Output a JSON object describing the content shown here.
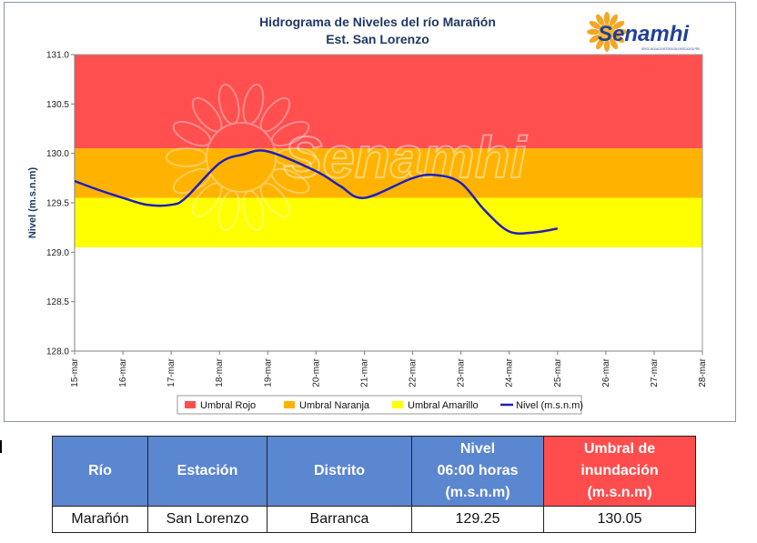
{
  "chart_data": {
    "type": "line",
    "title": "Hidrograma de Niveles del río Marañón",
    "subtitle": "Est. San Lorenzo",
    "ylabel": "Nivel (m.s.n.m)",
    "xlabel": "",
    "ylim": [
      128.0,
      131.0
    ],
    "yticks": [
      "128.0",
      "128.5",
      "129.0",
      "129.5",
      "130.0",
      "130.5",
      "131.0"
    ],
    "x_categories": [
      "15-mar",
      "16-mar",
      "17-mar",
      "18-mar",
      "19-mar",
      "20-mar",
      "21-mar",
      "22-mar",
      "23-mar",
      "24-mar",
      "25-mar",
      "26-mar",
      "27-mar",
      "28-mar"
    ],
    "grid": false,
    "legend_position": "bottom",
    "bands": [
      {
        "name": "Umbral Rojo",
        "from": 130.05,
        "to": 131.0,
        "color": "#ff4f4f"
      },
      {
        "name": "Umbral Naranja",
        "from": 129.55,
        "to": 130.05,
        "color": "#ffb300"
      },
      {
        "name": "Umbral Amarillo",
        "from": 129.05,
        "to": 129.55,
        "color": "#ffff00"
      }
    ],
    "series": [
      {
        "name": "Nivel (m.s.n.m)",
        "color": "#1f1fbf",
        "x": [
          0,
          0.5,
          1,
          1.5,
          2,
          2.3,
          3,
          3.5,
          4,
          5,
          5.5,
          6,
          7,
          7.5,
          8,
          8.5,
          9,
          9.5,
          10
        ],
        "y": [
          129.72,
          129.63,
          129.55,
          129.48,
          129.48,
          129.55,
          129.9,
          129.99,
          130.02,
          129.82,
          129.67,
          129.55,
          129.75,
          129.78,
          129.7,
          129.42,
          129.21,
          129.2,
          129.24
        ]
      }
    ]
  },
  "watermark": {
    "text": "Senamhi",
    "icon": "sun-icon"
  },
  "logo": {
    "text": "Senamhi",
    "tagline": "SERVICIO NACIONAL DE METEOROLOGÍA E HIDROLOGÍA DEL PERÚ",
    "icon": "sun-icon"
  },
  "table": {
    "headers": {
      "rio": "Río",
      "estacion": "Estación",
      "distrito": "Distrito",
      "nivel_1": "Nivel",
      "nivel_2": "06:00 horas",
      "nivel_3": "(m.s.n.m)",
      "umbral_1": "Umbral de",
      "umbral_2": "inundación",
      "umbral_3": "(m.s.n.m)"
    },
    "row": {
      "rio": "Marañón",
      "estacion": "San Lorenzo",
      "distrito": "Barranca",
      "nivel": "129.25",
      "umbral": "130.05"
    },
    "colors": {
      "header_blue": "#5b86d0",
      "header_red": "#ff4d4d"
    }
  }
}
